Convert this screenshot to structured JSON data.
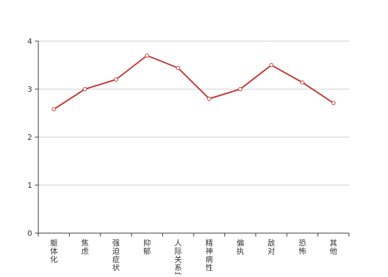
{
  "chart_data": {
    "type": "line",
    "title": "",
    "xlabel": "",
    "ylabel": "",
    "categories": [
      "躯体化",
      "焦虑",
      "强迫症状",
      "抑郁",
      "人际关系敏感",
      "精神病性",
      "偏执",
      "敌对",
      "恐怖",
      "其他"
    ],
    "series": [
      {
        "name": "",
        "values": [
          2.58,
          3.0,
          3.2,
          3.7,
          3.44,
          2.8,
          3.0,
          3.5,
          3.14,
          2.71
        ]
      }
    ],
    "ylim": [
      0,
      4
    ],
    "yticks": [
      0,
      1,
      2,
      3,
      4
    ],
    "grid": true,
    "colors": {
      "line": "#c23531",
      "marker_fill": "#ffffff",
      "grid": "#cccccc",
      "axis": "#333333"
    }
  }
}
